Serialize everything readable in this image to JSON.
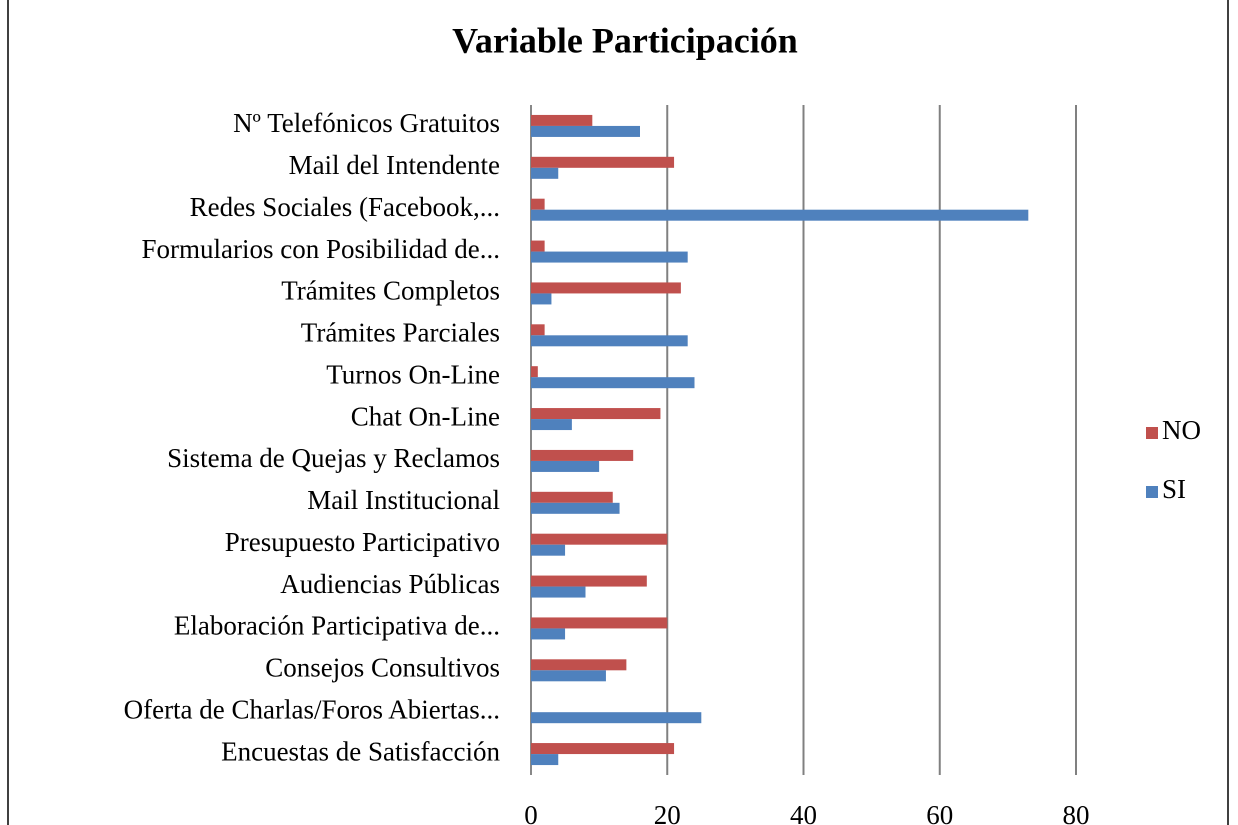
{
  "chart_data": {
    "type": "barh",
    "title": "Variable Participación",
    "categories": [
      "Nº  Telefónicos Gratuitos",
      "Mail del Intendente",
      "Redes Sociales (Facebook,...",
      "Formularios con Posibilidad de...",
      "Trámites Completos",
      "Trámites Parciales",
      "Turnos On-Line",
      "Chat On-Line",
      "Sistema de Quejas y Reclamos",
      "Mail Institucional",
      "Presupuesto Participativo",
      "Audiencias Públicas",
      "Elaboración Participativa de...",
      "Consejos Consultivos",
      "Oferta de Charlas/Foros Abiertas...",
      "Encuestas de Satisfacción"
    ],
    "series": [
      {
        "name": "NO",
        "color": "#c0504d",
        "values": [
          9,
          21,
          2,
          2,
          22,
          2,
          1,
          19,
          15,
          12,
          20,
          17,
          20,
          14,
          0,
          21
        ]
      },
      {
        "name": "SI",
        "color": "#4f81bd",
        "values": [
          16,
          4,
          73,
          23,
          3,
          23,
          24,
          6,
          10,
          13,
          5,
          8,
          5,
          11,
          25,
          4
        ]
      }
    ],
    "xlim": [
      0,
      80
    ],
    "xticks": [
      0,
      20,
      40,
      60,
      80
    ],
    "grid": true,
    "legend": "right"
  }
}
